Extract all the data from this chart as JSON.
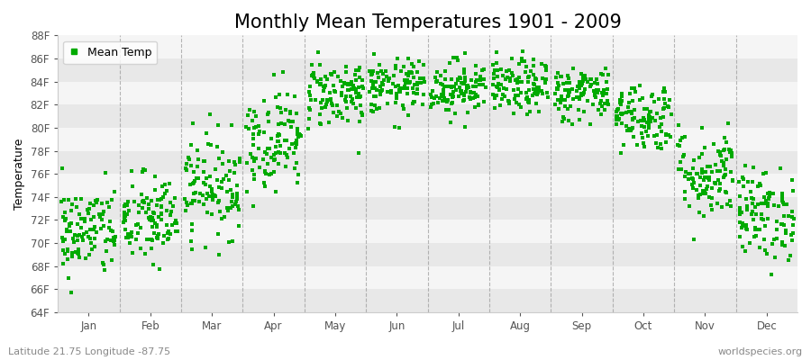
{
  "title": "Monthly Mean Temperatures 1901 - 2009",
  "ylabel": "Temperature",
  "xlabel": "",
  "months": [
    "Jan",
    "Feb",
    "Mar",
    "Apr",
    "May",
    "Jun",
    "Jul",
    "Aug",
    "Sep",
    "Oct",
    "Nov",
    "Dec"
  ],
  "monthly_means": [
    71.0,
    72.0,
    75.0,
    79.0,
    83.0,
    83.5,
    83.5,
    83.5,
    83.0,
    81.0,
    76.0,
    72.5
  ],
  "monthly_stds": [
    2.0,
    2.0,
    2.2,
    2.2,
    1.5,
    1.2,
    1.2,
    1.2,
    1.2,
    1.5,
    2.0,
    2.0
  ],
  "n_years": 109,
  "ylim": [
    64,
    88
  ],
  "yticks": [
    64,
    66,
    68,
    70,
    72,
    74,
    76,
    78,
    80,
    82,
    84,
    86,
    88
  ],
  "ytick_labels": [
    "64F",
    "66F",
    "68F",
    "70F",
    "72F",
    "74F",
    "76F",
    "78F",
    "80F",
    "82F",
    "84F",
    "86F",
    "88F"
  ],
  "marker_color": "#00aa00",
  "marker_size": 9,
  "bg_color": "#ffffff",
  "plot_bg_color": "#ffffff",
  "band_color_dark": "#e8e8e8",
  "band_color_light": "#f5f5f5",
  "dashed_color": "#999999",
  "legend_label": "Mean Temp",
  "footer_left": "Latitude 21.75 Longitude -87.75",
  "footer_right": "worldspecies.org",
  "title_fontsize": 15,
  "label_fontsize": 9,
  "tick_fontsize": 8.5,
  "footer_fontsize": 8
}
